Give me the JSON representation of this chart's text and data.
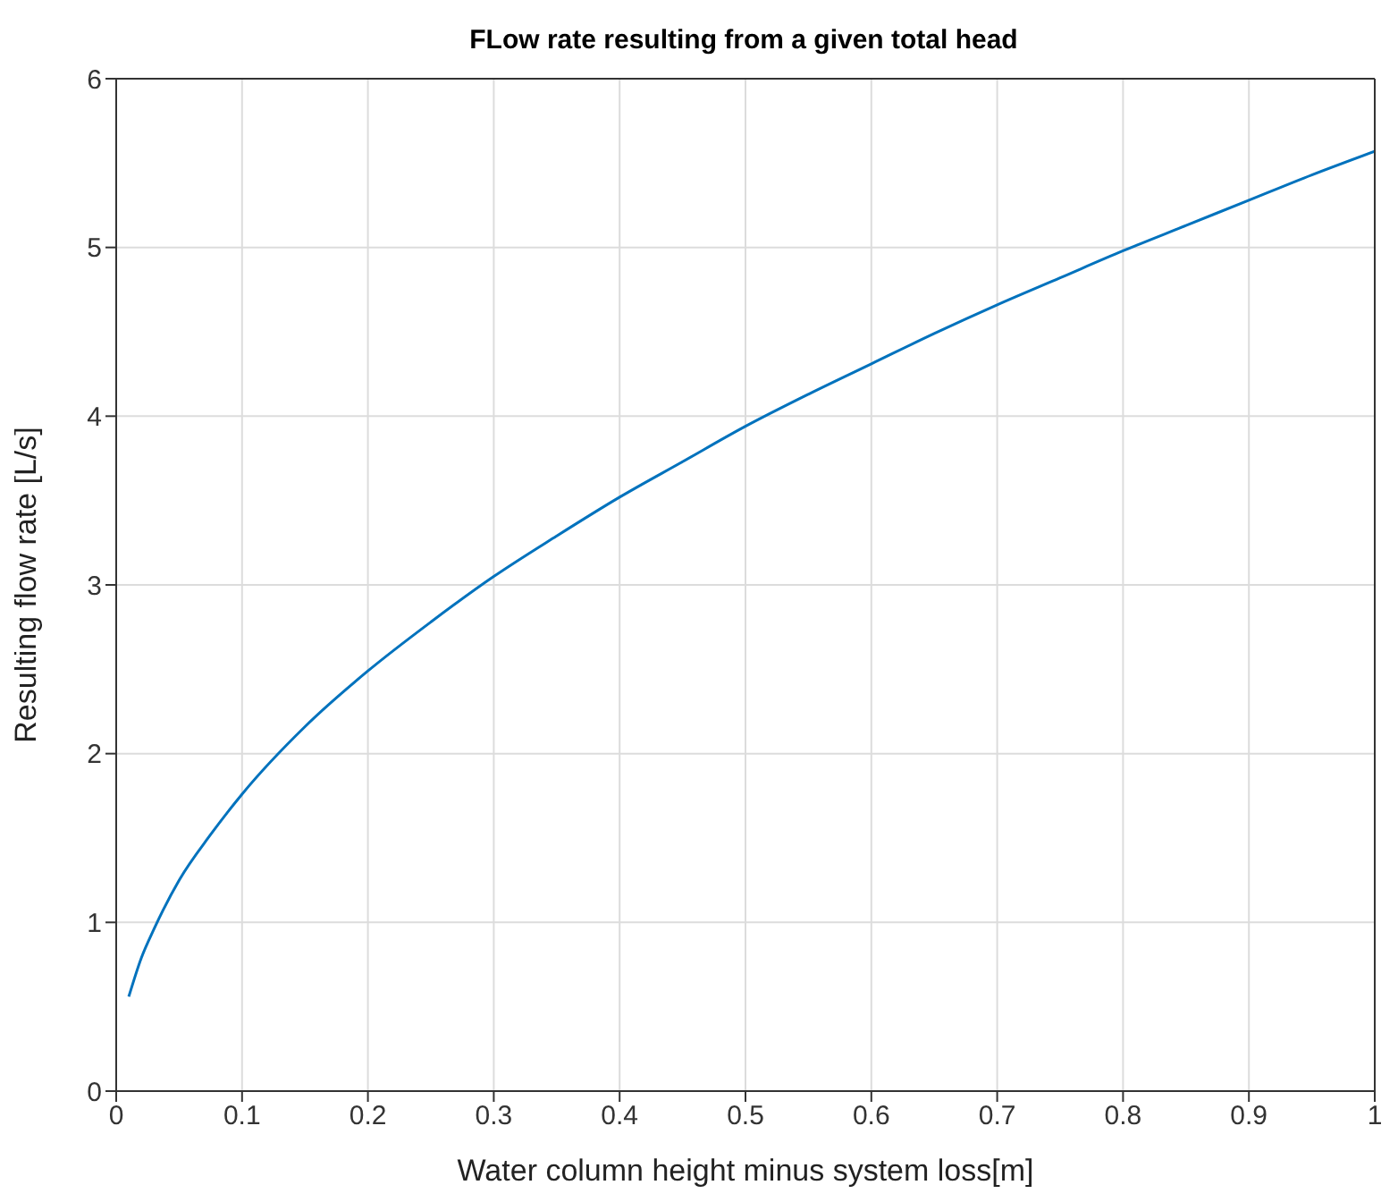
{
  "chart_data": {
    "type": "line",
    "title": "FLow rate resulting from a given total head",
    "xlabel": "Water column height minus system loss[m]",
    "ylabel": "Resulting flow rate [L/s]",
    "xlim": [
      0,
      1
    ],
    "xticks": [
      0,
      0.1,
      0.2,
      0.3,
      0.4,
      0.5,
      0.6,
      0.7,
      0.8,
      0.9,
      1
    ],
    "ylim": [
      0,
      6
    ],
    "yticks": [
      0,
      1,
      2,
      3,
      4,
      5,
      6
    ],
    "grid": true,
    "marker": "none",
    "line_style": "solid",
    "x": [
      0.01,
      0.02,
      0.03,
      0.05,
      0.075,
      0.1,
      0.15,
      0.2,
      0.25,
      0.3,
      0.35,
      0.4,
      0.45,
      0.5,
      0.55,
      0.6,
      0.65,
      0.7,
      0.75,
      0.8,
      0.85,
      0.9,
      0.95,
      1.0
    ],
    "series": [
      {
        "color": "#0072bd",
        "values": [
          0.56,
          0.79,
          0.96,
          1.25,
          1.52,
          1.76,
          2.16,
          2.49,
          2.78,
          3.05,
          3.29,
          3.52,
          3.73,
          3.94,
          4.13,
          4.31,
          4.49,
          4.66,
          4.82,
          4.98,
          5.13,
          5.28,
          5.43,
          5.57
        ]
      }
    ]
  }
}
